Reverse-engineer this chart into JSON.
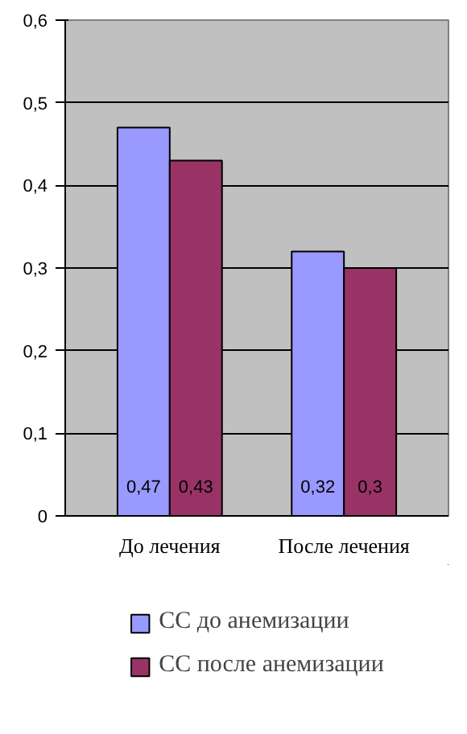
{
  "chart_data": {
    "type": "bar",
    "categories": [
      "До лечения",
      "После лечения"
    ],
    "series": [
      {
        "name": "СС до анемизации",
        "color": "#9999ff",
        "values": [
          0.47,
          0.32
        ],
        "value_labels": [
          "0,47",
          "0,32"
        ]
      },
      {
        "name": "СС после анемизации",
        "color": "#993366",
        "values": [
          0.43,
          0.3
        ],
        "value_labels": [
          "0,43",
          "0,3"
        ]
      }
    ],
    "ylim": [
      0,
      0.6
    ],
    "yticks": [
      0,
      {
        "value": 0.1,
        "label": "0,1"
      },
      {
        "value": 0.2,
        "label": "0,2"
      },
      {
        "value": 0.3,
        "label": "0,3"
      },
      {
        "value": 0.4,
        "label": "0,4"
      },
      {
        "value": 0.5,
        "label": "0,5"
      },
      {
        "value": 0.6,
        "label": "0,6"
      }
    ],
    "grid": "y",
    "legend": "bottom"
  }
}
